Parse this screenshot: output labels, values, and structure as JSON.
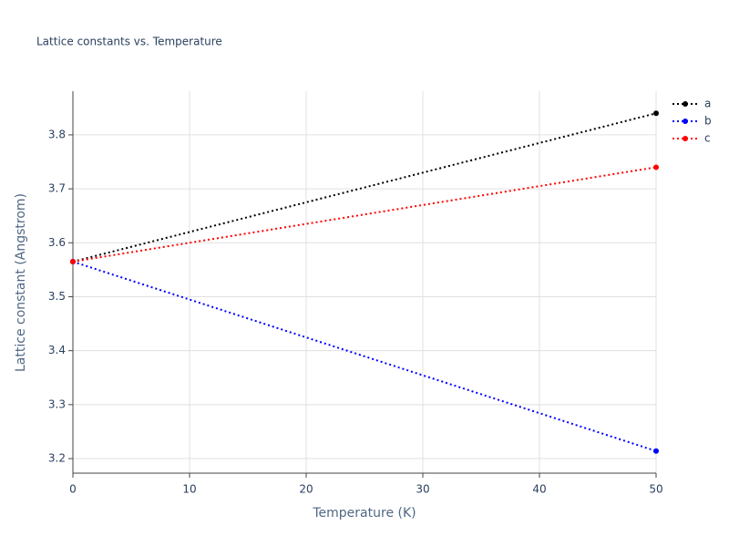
{
  "chart_data": {
    "type": "line",
    "title": "Lattice constants vs. Temperature",
    "x_label": "Temperature (K)",
    "y_label": "Lattice constant (Angstrom)",
    "x": [
      0,
      50
    ],
    "series": [
      {
        "name": "a",
        "color": "#000000",
        "values": [
          3.565,
          3.84
        ]
      },
      {
        "name": "b",
        "color": "#0000ff",
        "values": [
          3.565,
          3.214
        ]
      },
      {
        "name": "c",
        "color": "#ff0000",
        "values": [
          3.565,
          3.74
        ]
      }
    ],
    "xlim": [
      0,
      50
    ],
    "xticks": [
      0,
      10,
      20,
      30,
      40,
      50
    ],
    "ylim": [
      3.173,
      3.881
    ],
    "yticks": [
      3.2,
      3.3,
      3.4,
      3.5,
      3.6,
      3.7,
      3.8
    ],
    "grid": true,
    "legend": "top-right"
  }
}
